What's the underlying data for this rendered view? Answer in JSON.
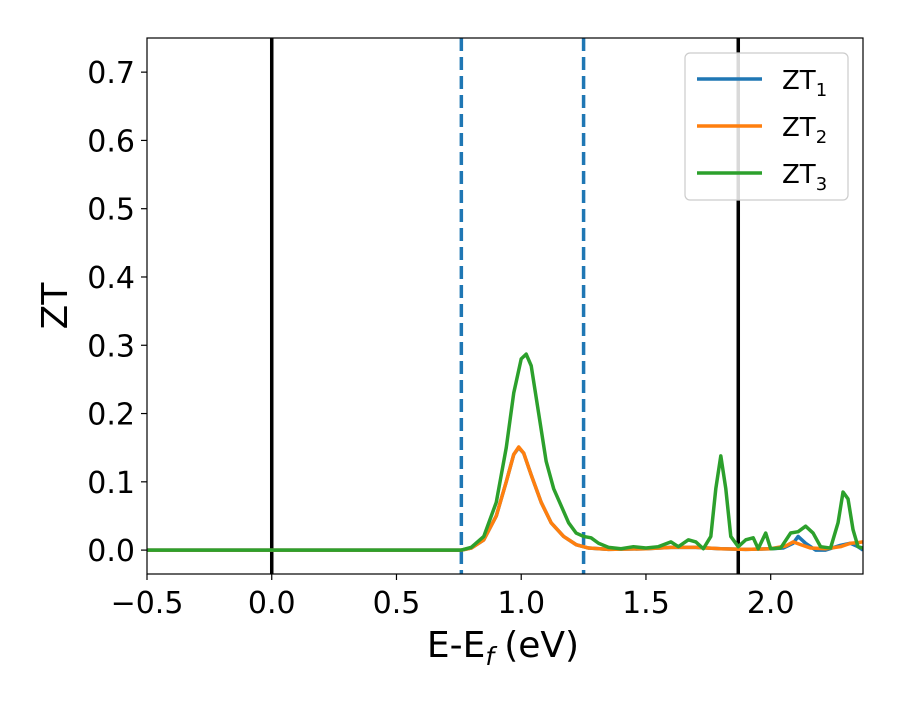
{
  "chart_data": {
    "type": "line",
    "xlabel": "E-E",
    "xlabel_subscript": "f",
    "xlabel_unit": "(eV)",
    "ylabel": "ZT",
    "xlim": [
      -0.5,
      2.37
    ],
    "ylim": [
      -0.035,
      0.75
    ],
    "xticks": [
      -0.5,
      0.0,
      0.5,
      1.0,
      1.5,
      2.0
    ],
    "xtick_labels": [
      "−0.5",
      "0.0",
      "0.5",
      "1.0",
      "1.5",
      "2.0"
    ],
    "yticks": [
      0.0,
      0.1,
      0.2,
      0.3,
      0.4,
      0.5,
      0.6,
      0.7
    ],
    "ytick_labels": [
      "0.0",
      "0.1",
      "0.2",
      "0.3",
      "0.4",
      "0.5",
      "0.6",
      "0.7"
    ],
    "grid": false,
    "legend_position": "top-right",
    "vertical_lines": [
      {
        "x": 0.0,
        "style": "solid",
        "color": "#000000"
      },
      {
        "x": 1.87,
        "style": "solid",
        "color": "#000000"
      },
      {
        "x": 0.76,
        "style": "dashed",
        "color": "#1f77b4"
      },
      {
        "x": 1.25,
        "style": "dashed",
        "color": "#1f77b4"
      }
    ],
    "series": [
      {
        "name": "ZT",
        "subscript": "1",
        "color": "#1f77b4",
        "points": [
          [
            -0.5,
            0.0
          ],
          [
            0.5,
            0.0
          ],
          [
            0.76,
            0.0
          ],
          [
            0.8,
            0.003
          ],
          [
            0.85,
            0.015
          ],
          [
            0.9,
            0.05
          ],
          [
            0.94,
            0.1
          ],
          [
            0.97,
            0.14
          ],
          [
            0.99,
            0.15
          ],
          [
            1.01,
            0.142
          ],
          [
            1.04,
            0.11
          ],
          [
            1.08,
            0.07
          ],
          [
            1.12,
            0.04
          ],
          [
            1.17,
            0.02
          ],
          [
            1.22,
            0.008
          ],
          [
            1.27,
            0.003
          ],
          [
            1.35,
            0.001
          ],
          [
            1.5,
            0.002
          ],
          [
            1.6,
            0.004
          ],
          [
            1.7,
            0.004
          ],
          [
            1.8,
            0.002
          ],
          [
            1.9,
            0.001
          ],
          [
            2.0,
            0.002
          ],
          [
            2.05,
            0.003
          ],
          [
            2.09,
            0.01
          ],
          [
            2.11,
            0.02
          ],
          [
            2.14,
            0.01
          ],
          [
            2.18,
            0.0
          ],
          [
            2.22,
            0.0
          ],
          [
            2.28,
            0.007
          ],
          [
            2.32,
            0.01
          ],
          [
            2.35,
            0.005
          ],
          [
            2.37,
            0.0
          ]
        ]
      },
      {
        "name": "ZT",
        "subscript": "2",
        "color": "#ff7f0e",
        "points": [
          [
            -0.5,
            0.0
          ],
          [
            0.5,
            0.0
          ],
          [
            0.76,
            0.0
          ],
          [
            0.8,
            0.003
          ],
          [
            0.85,
            0.015
          ],
          [
            0.9,
            0.05
          ],
          [
            0.94,
            0.1
          ],
          [
            0.97,
            0.14
          ],
          [
            0.99,
            0.151
          ],
          [
            1.01,
            0.142
          ],
          [
            1.04,
            0.11
          ],
          [
            1.08,
            0.07
          ],
          [
            1.12,
            0.04
          ],
          [
            1.17,
            0.02
          ],
          [
            1.22,
            0.008
          ],
          [
            1.27,
            0.003
          ],
          [
            1.35,
            0.001
          ],
          [
            1.5,
            0.002
          ],
          [
            1.6,
            0.004
          ],
          [
            1.7,
            0.004
          ],
          [
            1.8,
            0.002
          ],
          [
            1.9,
            0.001
          ],
          [
            2.0,
            0.002
          ],
          [
            2.06,
            0.006
          ],
          [
            2.09,
            0.012
          ],
          [
            2.12,
            0.008
          ],
          [
            2.16,
            0.003
          ],
          [
            2.22,
            0.002
          ],
          [
            2.28,
            0.005
          ],
          [
            2.32,
            0.01
          ],
          [
            2.35,
            0.011
          ],
          [
            2.37,
            0.012
          ]
        ]
      },
      {
        "name": "ZT",
        "subscript": "3",
        "color": "#2ca02c",
        "points": [
          [
            -0.5,
            0.0
          ],
          [
            0.5,
            0.0
          ],
          [
            0.7,
            0.0
          ],
          [
            0.76,
            0.0
          ],
          [
            0.8,
            0.004
          ],
          [
            0.85,
            0.02
          ],
          [
            0.9,
            0.07
          ],
          [
            0.94,
            0.15
          ],
          [
            0.97,
            0.23
          ],
          [
            1.0,
            0.28
          ],
          [
            1.02,
            0.287
          ],
          [
            1.04,
            0.27
          ],
          [
            1.07,
            0.2
          ],
          [
            1.1,
            0.13
          ],
          [
            1.13,
            0.09
          ],
          [
            1.16,
            0.065
          ],
          [
            1.19,
            0.04
          ],
          [
            1.22,
            0.025
          ],
          [
            1.25,
            0.02
          ],
          [
            1.28,
            0.018
          ],
          [
            1.31,
            0.01
          ],
          [
            1.35,
            0.004
          ],
          [
            1.4,
            0.002
          ],
          [
            1.45,
            0.005
          ],
          [
            1.5,
            0.003
          ],
          [
            1.55,
            0.005
          ],
          [
            1.6,
            0.012
          ],
          [
            1.63,
            0.005
          ],
          [
            1.67,
            0.015
          ],
          [
            1.7,
            0.012
          ],
          [
            1.73,
            0.002
          ],
          [
            1.76,
            0.02
          ],
          [
            1.78,
            0.09
          ],
          [
            1.8,
            0.138
          ],
          [
            1.82,
            0.09
          ],
          [
            1.84,
            0.02
          ],
          [
            1.87,
            0.005
          ],
          [
            1.9,
            0.015
          ],
          [
            1.93,
            0.018
          ],
          [
            1.95,
            0.002
          ],
          [
            1.98,
            0.025
          ],
          [
            2.0,
            0.002
          ],
          [
            2.04,
            0.003
          ],
          [
            2.08,
            0.025
          ],
          [
            2.11,
            0.027
          ],
          [
            2.14,
            0.035
          ],
          [
            2.17,
            0.025
          ],
          [
            2.2,
            0.005
          ],
          [
            2.24,
            0.003
          ],
          [
            2.27,
            0.04
          ],
          [
            2.29,
            0.085
          ],
          [
            2.31,
            0.075
          ],
          [
            2.33,
            0.03
          ],
          [
            2.35,
            0.005
          ],
          [
            2.37,
            0.003
          ]
        ]
      }
    ]
  }
}
